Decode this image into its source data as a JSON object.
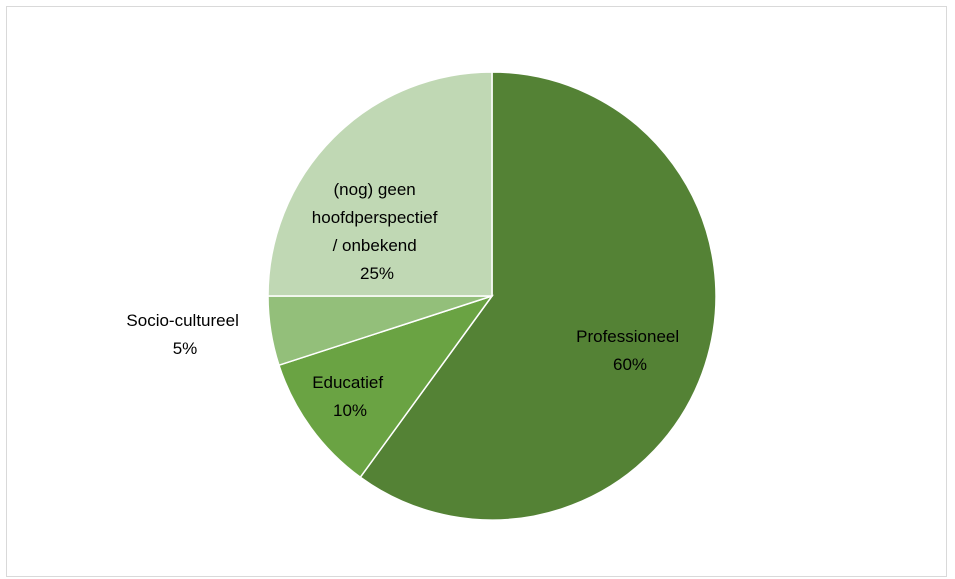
{
  "chart_data": {
    "type": "pie",
    "title": "",
    "start": "12 o'clock, clockwise",
    "slices": [
      {
        "label": "Professioneel",
        "value": 60,
        "value_label": "60%",
        "color": "#548235"
      },
      {
        "label": "Educatief",
        "value": 10,
        "value_label": "10%",
        "color": "#6aa343"
      },
      {
        "label": "Socio-cultureel",
        "value": 5,
        "value_label": "5%",
        "color": "#93bf7a"
      },
      {
        "label": "(nog) geen hoofdperspectief / onbekend",
        "value": 25,
        "value_label": "25%",
        "color": "#c0d8b4"
      }
    ]
  }
}
